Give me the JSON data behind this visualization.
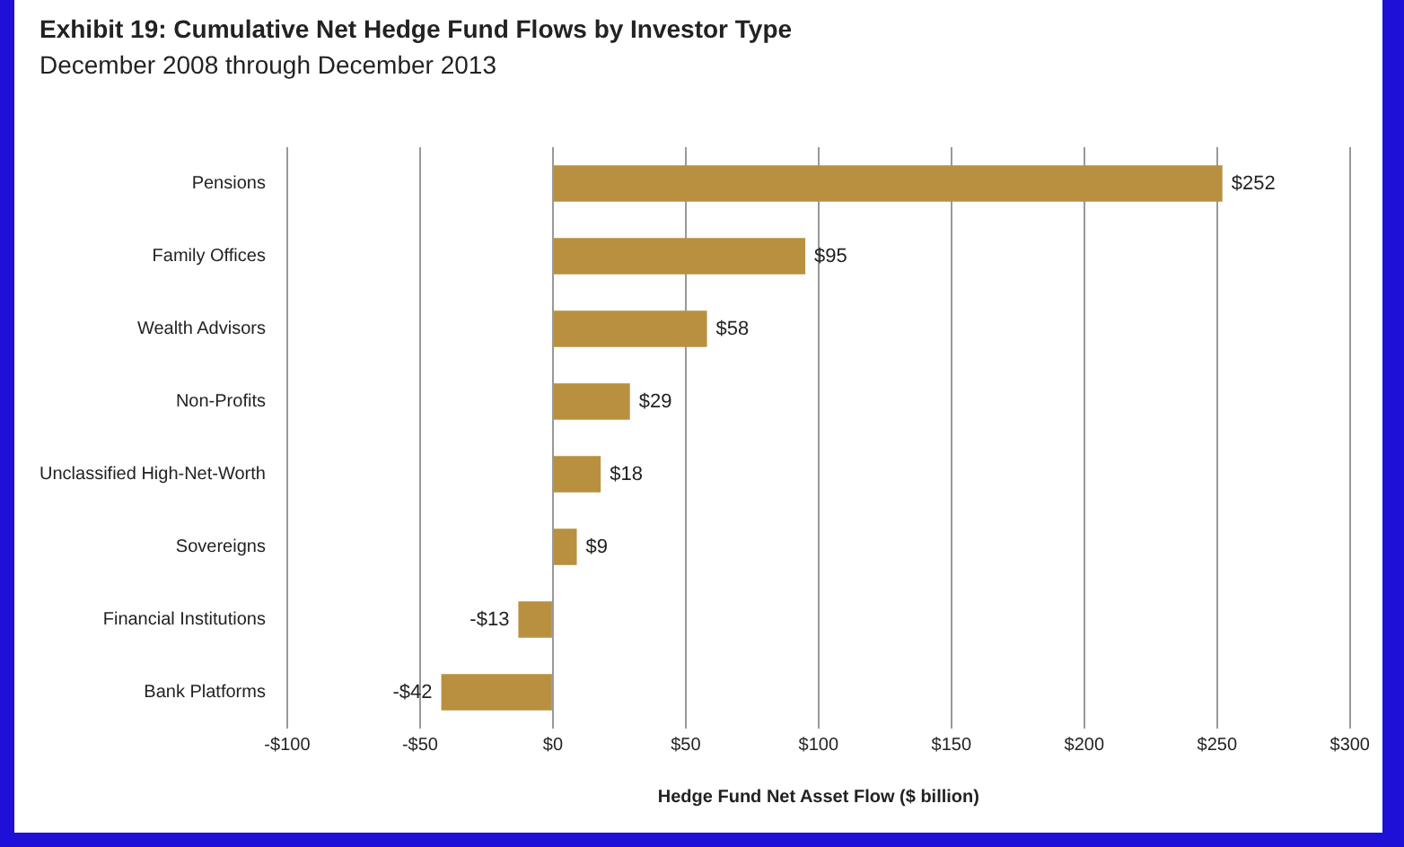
{
  "chart_data": {
    "type": "bar",
    "orientation": "horizontal",
    "title": "Exhibit 19: Cumulative Net Hedge Fund Flows by Investor Type",
    "subtitle": "December 2008 through December 2013",
    "xlabel": "Hedge Fund Net Asset Flow ($ billion)",
    "categories": [
      "Pensions",
      "Family Offices",
      "Wealth Advisors",
      "Non-Profits",
      "Unclassified High-Net-Worth",
      "Sovereigns",
      "Financial Institutions",
      "Bank Platforms"
    ],
    "values": [
      252,
      95,
      58,
      29,
      18,
      9,
      -13,
      -42
    ],
    "value_labels": [
      "$252",
      "$95",
      "$58",
      "$29",
      "$18",
      "$9",
      "-$13",
      "-$42"
    ],
    "color": "#b8903f",
    "xlim": [
      -100,
      300
    ],
    "xticks": [
      {
        "value": -100,
        "label": "-$100"
      },
      {
        "value": -50,
        "label": "-$50"
      },
      {
        "value": 0,
        "label": "$0"
      },
      {
        "value": 50,
        "label": "$50"
      },
      {
        "value": 100,
        "label": "$100"
      },
      {
        "value": 150,
        "label": "$150"
      },
      {
        "value": 200,
        "label": "$200"
      },
      {
        "value": 250,
        "label": "$250"
      },
      {
        "value": 300,
        "label": "$300"
      }
    ],
    "grid": "x",
    "legend": false
  }
}
